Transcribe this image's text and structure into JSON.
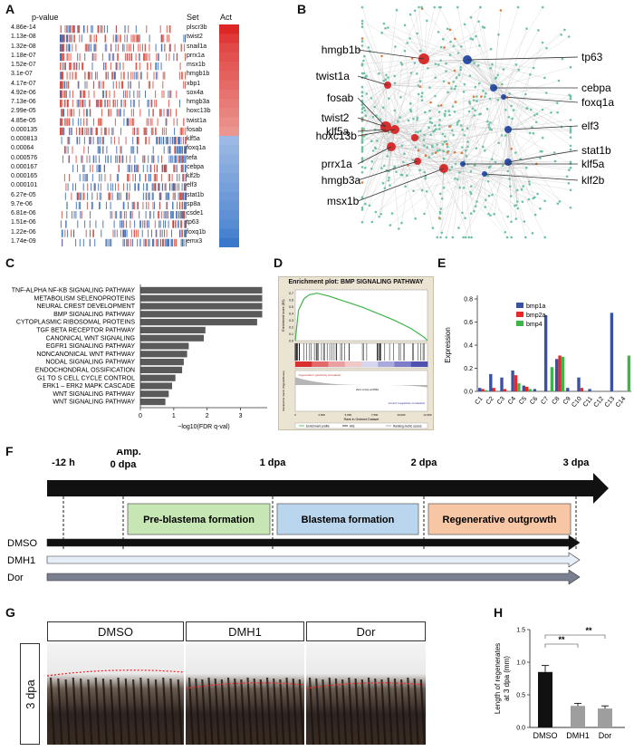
{
  "panels": {
    "A": "A",
    "B": "B",
    "C": "C",
    "D": "D",
    "E": "E",
    "F": "F",
    "G": "G",
    "H": "H"
  },
  "panelA": {
    "header_pvalue": "p-value",
    "header_set": "Set",
    "header_act": "Act",
    "rows": [
      {
        "p": "4.86e-14",
        "set": "plscr3b",
        "act": 0.95
      },
      {
        "p": "1.13e-08",
        "set": "twist2",
        "act": 0.85
      },
      {
        "p": "1.32e-08",
        "set": "snail1a",
        "act": 0.75
      },
      {
        "p": "1.18e-07",
        "set": "prrx1a",
        "act": 0.7
      },
      {
        "p": "1.52e-07",
        "set": "msx1b",
        "act": 0.65
      },
      {
        "p": "3.1e-07",
        "set": "hmgb1b",
        "act": 0.6
      },
      {
        "p": "4.17e-07",
        "set": "xbp1",
        "act": 0.55
      },
      {
        "p": "4.92e-06",
        "set": "sox4a",
        "act": 0.5
      },
      {
        "p": "7.13e-06",
        "set": "hmgb3a",
        "act": 0.45
      },
      {
        "p": "2.99e-05",
        "set": "hoxc13b",
        "act": 0.4
      },
      {
        "p": "4.85e-05",
        "set": "twist1a",
        "act": 0.35
      },
      {
        "p": "0.000135",
        "set": "fosab",
        "act": 0.3
      },
      {
        "p": "0.000813",
        "set": "klf5a",
        "act": -0.3
      },
      {
        "p": "0.00064",
        "set": "foxq1a",
        "act": -0.35
      },
      {
        "p": "0.000576",
        "set": "tefa",
        "act": -0.4
      },
      {
        "p": "0.000167",
        "set": "cebpa",
        "act": -0.45
      },
      {
        "p": "0.000165",
        "set": "klf2b",
        "act": -0.5
      },
      {
        "p": "0.000101",
        "set": "elf3",
        "act": -0.55
      },
      {
        "p": "6.27e-05",
        "set": "stat1b",
        "act": -0.6
      },
      {
        "p": "9.7e-06",
        "set": "sp8a",
        "act": -0.65
      },
      {
        "p": "6.81e-06",
        "set": "csde1",
        "act": -0.7
      },
      {
        "p": "1.51e-06",
        "set": "tp63",
        "act": -0.75
      },
      {
        "p": "1.22e-06",
        "set": "foxq1b",
        "act": -0.85
      },
      {
        "p": "1.74e-09",
        "set": "emx3",
        "act": -0.95
      }
    ]
  },
  "panelB": {
    "labels_left": [
      "hmgb1b",
      "twist1a",
      "fosab",
      "twist2",
      "hoxc13b",
      "klf5a",
      "prrx1a",
      "hmgb3a",
      "msx1b"
    ],
    "labels_right": [
      "tp63",
      "cebpa",
      "foxq1a",
      "elf3",
      "stat1b",
      "klf5a",
      "klf2b"
    ]
  },
  "chart_data": [
    {
      "type": "bar",
      "id": "C",
      "categories": [
        "TNF-ALPHA NF-KB SIGNALING PATHWAY",
        "METABOLISM SELENOPROTEINS",
        "NEURAL CREST DEVELOPMENT",
        "BMP SIGNALING PATHWAY",
        "CYTOPLASMIC RIBOSOMAL PROTEINS",
        "TGF BETA RECEPTOR PATHWAY",
        "CANONICAL WNT SIGNALING",
        "EGFR1 SIGNALING PATHWAY",
        "NONCANONICAL WNT PATHWAY",
        "NODAL SIGNALING PATHWAY",
        "ENDOCHONDRAL OSSIFICATION",
        "G1 TO S CELL CYCLE CONTROL",
        "ERK1 – ERK2 MAPK CASCADE",
        "WNT SIGNALING PATHWAY",
        "WNT SIGNALING PATHWAY"
      ],
      "values": [
        3.65,
        3.65,
        3.65,
        3.65,
        3.5,
        1.95,
        1.9,
        1.45,
        1.4,
        1.3,
        1.25,
        1.05,
        0.95,
        0.85,
        0.75
      ],
      "xlabel": "−log10(FDR q-val)",
      "xticks": [
        "0",
        "1",
        "2",
        "3"
      ],
      "xlim": [
        0,
        3.8
      ]
    },
    {
      "type": "line",
      "id": "D",
      "title": "Enrichment plot: BMP SIGNALING PATHWAY",
      "ylabel_top": "Enrichment score (ES)",
      "ylabel_bottom": "Ranked list metric (Signal2Noise)",
      "xlabel": "Rank in Ordered Dataset",
      "xticks": [
        "0",
        "2,500",
        "5,000",
        "7,500",
        "10,000",
        "12,500"
      ],
      "yticks_top": [
        "0.7",
        "0.6",
        "0.5",
        "0.4",
        "0.3",
        "0.2",
        "0.1",
        "0.0"
      ],
      "text_pos": "'regeneration' (positively correlated)",
      "text_neg": "'control' (negatively correlated)",
      "zero_cross": "Zero cross at 6542",
      "legend": [
        "Enrichment profile",
        "Hits",
        "Ranking metric scores"
      ],
      "es_curve": [
        [
          0,
          0
        ],
        [
          300,
          0.45
        ],
        [
          800,
          0.62
        ],
        [
          1300,
          0.68
        ],
        [
          2000,
          0.7
        ],
        [
          3000,
          0.66
        ],
        [
          4500,
          0.58
        ],
        [
          6000,
          0.5
        ],
        [
          7500,
          0.4
        ],
        [
          9000,
          0.3
        ],
        [
          10500,
          0.18
        ],
        [
          11700,
          0.05
        ],
        [
          12000,
          0.0
        ]
      ]
    },
    {
      "type": "bar",
      "id": "E",
      "categories": [
        "C1",
        "C2",
        "C3",
        "C4",
        "C5",
        "C6",
        "C7",
        "C8",
        "C9",
        "C10",
        "C11",
        "C12",
        "C13",
        "C14"
      ],
      "ylabel": "Expression",
      "yticks": [
        "0.0",
        "0.2",
        "0.4",
        "0.6",
        "0.8"
      ],
      "ylim": [
        0,
        0.8
      ],
      "series": [
        {
          "name": "bmp1a",
          "color": "#3953a4",
          "values": [
            0.03,
            0.15,
            0.12,
            0.18,
            0.05,
            0.02,
            0.66,
            0.28,
            0.03,
            0.12,
            0.02,
            0.0,
            0.68,
            0.0
          ]
        },
        {
          "name": "bmp2a",
          "color": "#e8282b",
          "values": [
            0.02,
            0.03,
            0.02,
            0.14,
            0.04,
            0.0,
            0.0,
            0.31,
            0.0,
            0.03,
            0.0,
            0.0,
            0.0,
            0.0
          ]
        },
        {
          "name": "bmp4",
          "color": "#3fb449",
          "values": [
            0.01,
            0.0,
            0.0,
            0.07,
            0.02,
            0.0,
            0.21,
            0.3,
            0.0,
            0.0,
            0.0,
            0.0,
            0.0,
            0.31
          ]
        }
      ]
    },
    {
      "type": "bar",
      "id": "H",
      "categories": [
        "DMSO",
        "DMH1",
        "Dor"
      ],
      "values": [
        0.85,
        0.33,
        0.29
      ],
      "errors": [
        0.1,
        0.04,
        0.04
      ],
      "colors": [
        "#111111",
        "#9e9e9e",
        "#9e9e9e"
      ],
      "ylabel": "Length of regenerates at 3 dpa (mm)",
      "yticks": [
        "0.0",
        "0.5",
        "1.0",
        "1.5"
      ],
      "ylim": [
        0,
        1.5
      ],
      "significance": [
        "**",
        "**"
      ]
    }
  ],
  "panelF": {
    "timepoints": [
      "-12 h",
      "Amp.",
      "0 dpa",
      "1 dpa",
      "2 dpa",
      "3 dpa"
    ],
    "phases": [
      {
        "label": "Pre-blastema formation",
        "color": "#c6e6b3"
      },
      {
        "label": "Blastema formation",
        "color": "#b9d6ee"
      },
      {
        "label": "Regenerative outgrowth",
        "color": "#f7c7a5"
      }
    ],
    "treatments": [
      "DMSO",
      "DMH1",
      "Dor"
    ]
  },
  "panelG": {
    "headers": [
      "DMSO",
      "DMH1",
      "Dor"
    ],
    "row_label": "3 dpa"
  }
}
